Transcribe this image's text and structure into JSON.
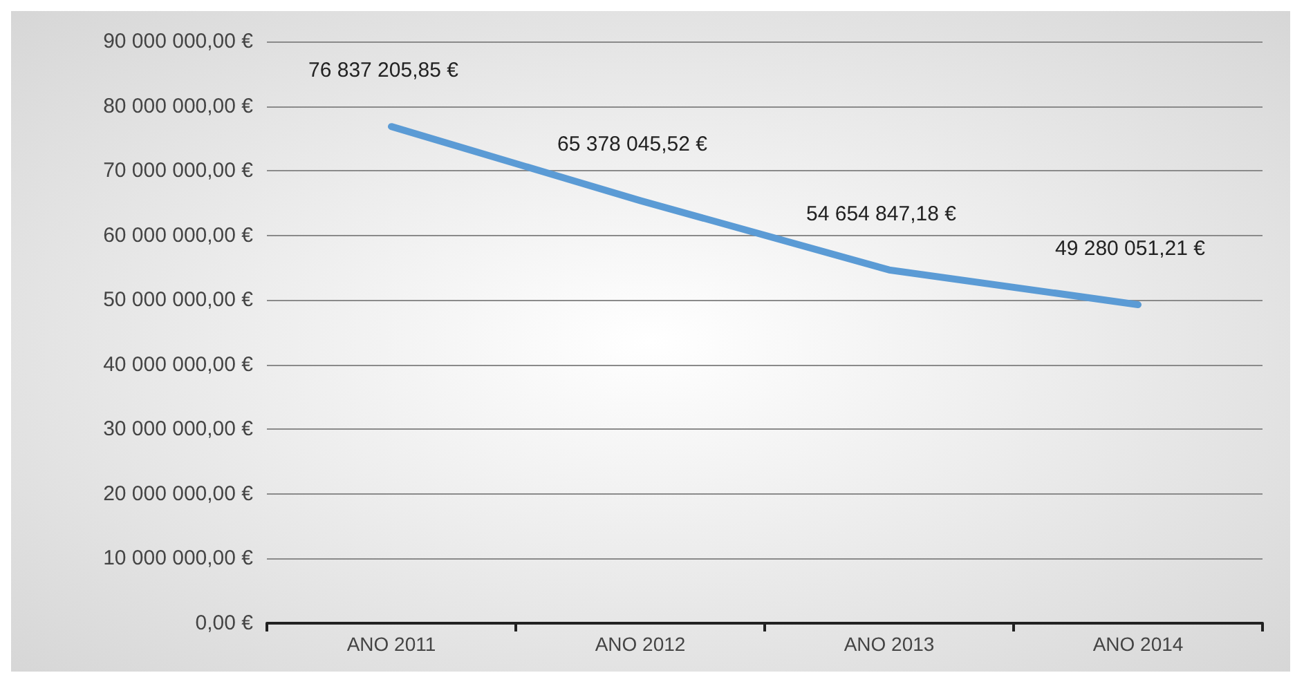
{
  "chart_data": {
    "type": "line",
    "categories": [
      "ANO 2011",
      "ANO 2012",
      "ANO 2013",
      "ANO 2014"
    ],
    "series": [
      {
        "color": "#5b9bd5",
        "values": [
          76837205.85,
          65378045.52,
          54654847.18,
          49280051.21
        ],
        "value_labels": [
          "76 837 205,85 €",
          "65 378 045,52 €",
          "54 654 847,18 €",
          "49 280 051,21 €"
        ]
      }
    ],
    "ylim": [
      0,
      90000000
    ],
    "yticks": [
      {
        "value": 0,
        "label": "0,00 €"
      },
      {
        "value": 10000000,
        "label": "10 000 000,00 €"
      },
      {
        "value": 20000000,
        "label": "20 000 000,00 €"
      },
      {
        "value": 30000000,
        "label": "30 000 000,00 €"
      },
      {
        "value": 40000000,
        "label": "40 000 000,00 €"
      },
      {
        "value": 50000000,
        "label": "50 000 000,00 €"
      },
      {
        "value": 60000000,
        "label": "60 000 000,00 €"
      },
      {
        "value": 70000000,
        "label": "70 000 000,00 €"
      },
      {
        "value": 80000000,
        "label": "80 000 000,00 €"
      },
      {
        "value": 90000000,
        "label": "90 000 000,00 €"
      }
    ],
    "grid": "y",
    "marker": "none",
    "line_style": "solid"
  }
}
